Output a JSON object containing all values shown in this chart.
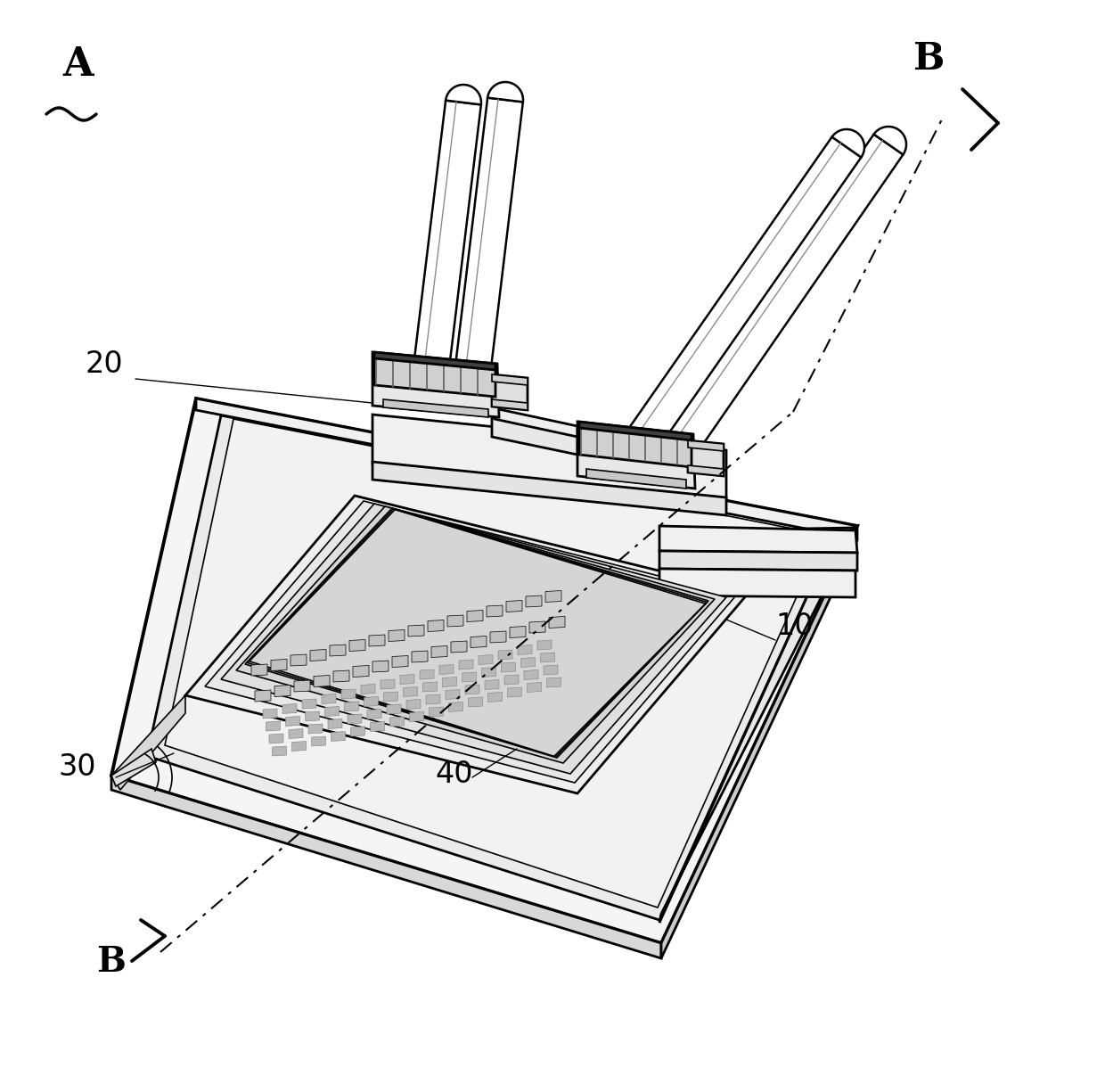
{
  "bg_color": "#ffffff",
  "line_color": "#000000",
  "lw_main": 2.0,
  "lw_thick": 2.8,
  "lw_thin": 1.2,
  "lw_cable": 1.8,
  "label_A": "A",
  "label_B": "B",
  "label_10": "10",
  "label_20": "20",
  "label_30": "30",
  "label_40": "40",
  "fig_width": 12.4,
  "fig_height": 12.07,
  "dpi": 100,
  "face_board": "#f5f5f5",
  "face_inner": "#ebebeb",
  "face_socket": "#e8e8e8",
  "face_contacts": "#d8d8d8",
  "face_white": "#ffffff",
  "face_frame": "#f0f0f0",
  "face_connector": "#e0e0e0",
  "face_thread": "#c8c8c8"
}
